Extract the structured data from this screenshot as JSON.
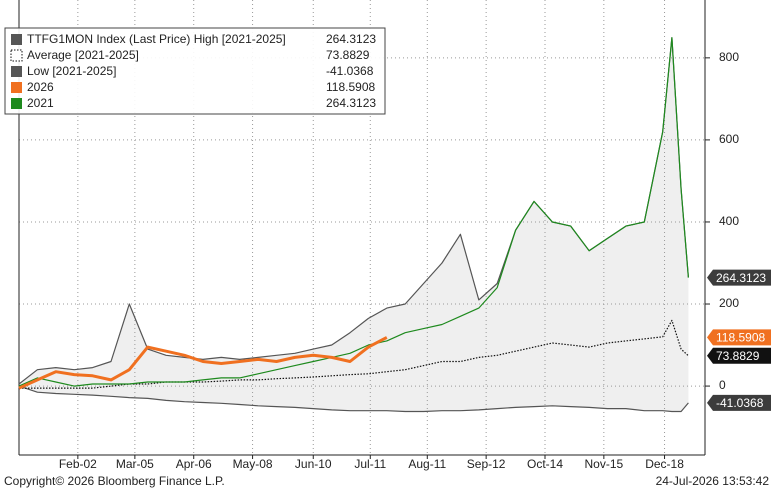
{
  "chart_data": {
    "type": "line",
    "x": [
      0,
      10,
      20,
      30,
      40,
      50,
      60,
      70,
      80,
      90,
      100,
      110,
      120,
      130,
      140,
      150,
      160,
      170,
      180,
      190,
      200,
      210,
      220,
      230,
      240,
      250,
      260,
      270,
      280,
      290,
      300,
      310,
      320,
      330,
      340,
      350,
      355,
      360,
      364
    ],
    "xlim": [
      0,
      373
    ],
    "xticks": [
      {
        "value": 32,
        "label": "Feb-02"
      },
      {
        "value": 63,
        "label": "Mar-05"
      },
      {
        "value": 95,
        "label": "Apr-06"
      },
      {
        "value": 127,
        "label": "May-08"
      },
      {
        "value": 160,
        "label": "Jun-10"
      },
      {
        "value": 191,
        "label": "Jul-11"
      },
      {
        "value": 222,
        "label": "Aug-11"
      },
      {
        "value": 254,
        "label": "Sep-12"
      },
      {
        "value": 286,
        "label": "Oct-14"
      },
      {
        "value": 318,
        "label": "Nov-15"
      },
      {
        "value": 351,
        "label": "Dec-18"
      }
    ],
    "ylim": [
      -168,
      941
    ],
    "yticks": [
      0,
      200,
      400,
      600,
      800
    ],
    "grid": true,
    "legend": "top-left",
    "series": [
      {
        "name": "TTFG1MON Index (Last Price) High [2021-2025]",
        "color": "#555555",
        "style": "solid",
        "last_value": "264.3123",
        "values": [
          5,
          40,
          45,
          40,
          45,
          60,
          200,
          90,
          75,
          70,
          65,
          70,
          65,
          70,
          75,
          80,
          90,
          100,
          130,
          165,
          190,
          200,
          250,
          300,
          370,
          210,
          250,
          380,
          450,
          400,
          390,
          330,
          360,
          390,
          400,
          620,
          849,
          480,
          264.3123
        ]
      },
      {
        "name": "Average  [2021-2025]",
        "color": "#111111",
        "style": "dotted",
        "last_value": "73.8829",
        "values": [
          -5,
          -5,
          -5,
          -5,
          -5,
          0,
          5,
          5,
          10,
          10,
          10,
          12,
          15,
          15,
          18,
          20,
          22,
          25,
          28,
          30,
          35,
          40,
          50,
          60,
          60,
          70,
          75,
          85,
          95,
          105,
          100,
          95,
          105,
          110,
          115,
          120,
          160,
          90,
          73.8829
        ]
      },
      {
        "name": "Low  [2021-2025]",
        "color": "#555555",
        "style": "solid",
        "last_value": "-41.0368",
        "values": [
          0,
          -15,
          -18,
          -20,
          -22,
          -25,
          -28,
          -30,
          -35,
          -38,
          -40,
          -42,
          -45,
          -48,
          -50,
          -52,
          -55,
          -58,
          -60,
          -60,
          -60,
          -62,
          -62,
          -60,
          -60,
          -58,
          -55,
          -52,
          -50,
          -48,
          -50,
          -52,
          -55,
          -55,
          -60,
          -60,
          -62,
          -62,
          -41.0368
        ]
      },
      {
        "name": "2026",
        "color": "#f07020",
        "style": "thick",
        "last_value": "118.5908",
        "values": [
          -5,
          15,
          35,
          28,
          25,
          15,
          40,
          95,
          85,
          75,
          60,
          55,
          60,
          65,
          60,
          70,
          75,
          70,
          60,
          95,
          118.5908,
          null,
          null,
          null,
          null,
          null,
          null,
          null,
          null,
          null,
          null,
          null,
          null,
          null,
          null,
          null,
          null,
          null,
          null
        ]
      },
      {
        "name": "2021",
        "color": "#1e8a1e",
        "style": "solid",
        "last_value": "264.3123",
        "values": [
          0,
          20,
          10,
          0,
          5,
          5,
          5,
          10,
          10,
          10,
          15,
          20,
          20,
          30,
          40,
          50,
          60,
          70,
          80,
          100,
          110,
          130,
          140,
          150,
          170,
          190,
          240,
          380,
          450,
          400,
          390,
          330,
          360,
          390,
          400,
          620,
          849,
          480,
          264.3123
        ]
      }
    ],
    "footer_left": "Copyright© 2026 Bloomberg Finance L.P.",
    "footer_right": "24-Jul-2026 13:53:42"
  }
}
